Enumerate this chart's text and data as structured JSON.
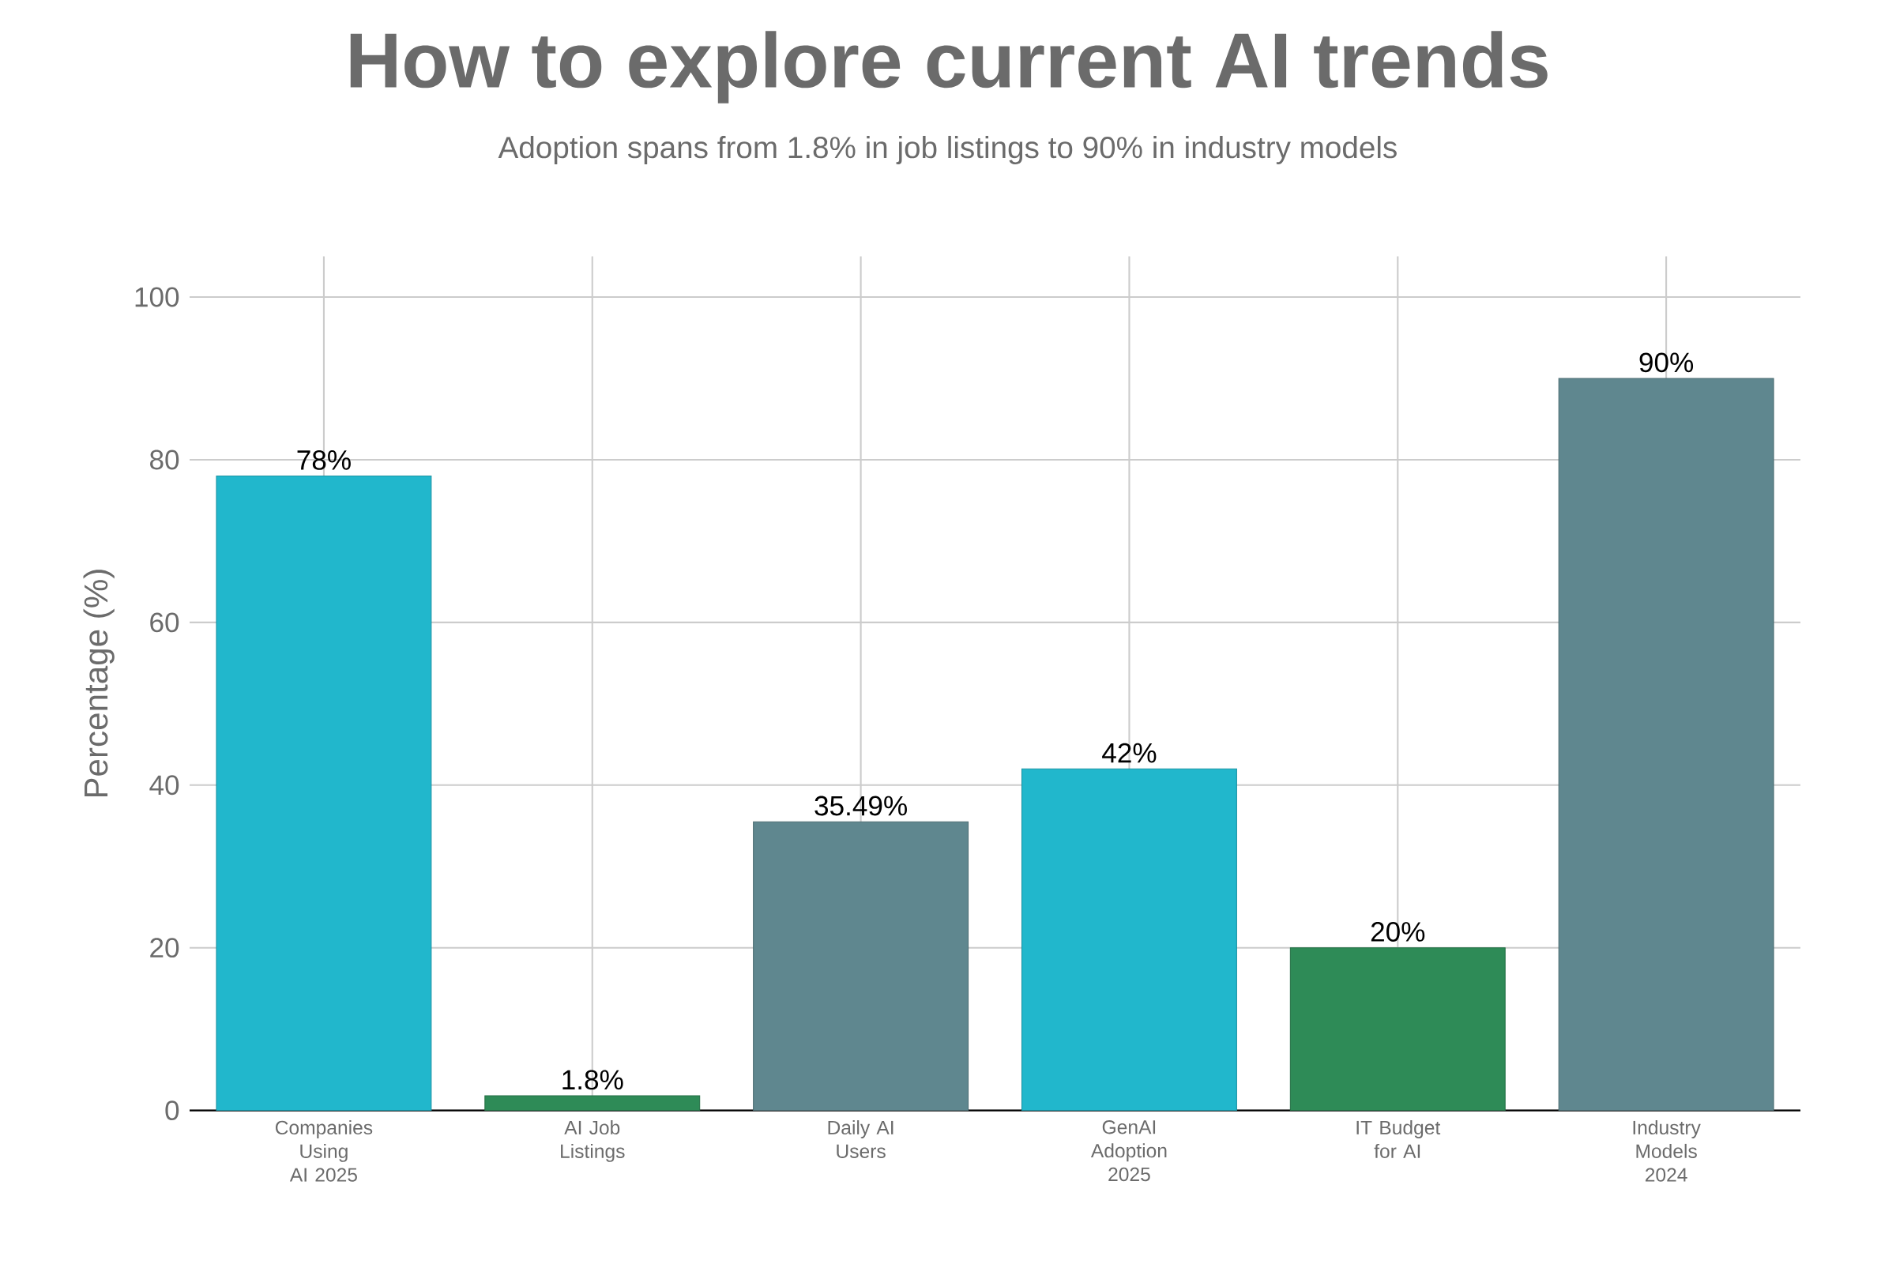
{
  "chart_data": {
    "type": "bar",
    "title": "How to explore current AI trends",
    "subtitle": "Adoption spans from 1.8% in job listings to 90% in industry models",
    "ylabel": "Percentage (%)",
    "categories": [
      "Companies Using AI 2025",
      "AI Job Listings",
      "Daily AI Users",
      "GenAI Adoption 2025",
      "IT Budget for AI",
      "Industry Models 2024"
    ],
    "values": [
      78,
      1.8,
      35.49,
      42,
      20,
      90
    ],
    "colors": [
      "#21b7cc",
      "#2e8b57",
      "#5f878f",
      "#21b7cc",
      "#2e8b57",
      "#5f878f"
    ],
    "value_labels": [
      "78%",
      "1.8%",
      "35.49%",
      "42%",
      "20%",
      "90%"
    ],
    "ylim": [
      0,
      105
    ],
    "yticks": [
      0,
      20,
      40,
      60,
      80,
      100
    ],
    "grid": true
  }
}
